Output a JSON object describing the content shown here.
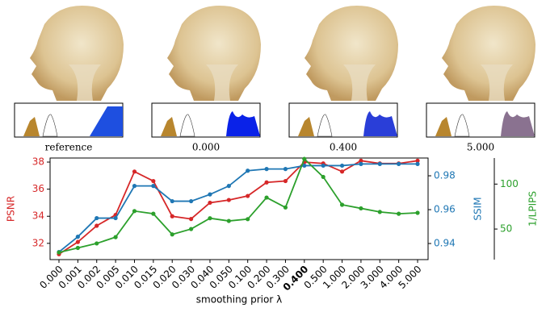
{
  "panels": [
    {
      "label": "reference"
    },
    {
      "label": "0.000"
    },
    {
      "label": "0.400"
    },
    {
      "label": "5.000"
    }
  ],
  "chart_data": {
    "type": "line",
    "x_label": "smoothing prior λ",
    "categories": [
      "0.000",
      "0.001",
      "0.002",
      "0.005",
      "0.010",
      "0.015",
      "0.020",
      "0.030",
      "0.040",
      "0.050",
      "0.100",
      "0.200",
      "0.300",
      "0.400",
      "0.500",
      "1.000",
      "2.000",
      "3.000",
      "4.000",
      "5.000"
    ],
    "bold_category_index": 13,
    "y_label": "PSNR",
    "y2_label": "SSIM",
    "y3_label": "1/LPIPS",
    "ylim": [
      30.8,
      38.3
    ],
    "yticks": [
      32,
      34,
      36,
      38
    ],
    "y2lim": [
      0.9305,
      0.9905
    ],
    "y2ticks": [
      0.94,
      0.96,
      0.98
    ],
    "y3lim": [
      16,
      129
    ],
    "y3ticks": [
      50,
      100
    ],
    "series": [
      {
        "name": "PSNR",
        "color": "#d62728",
        "axis": "y",
        "values": [
          31.2,
          32.1,
          33.3,
          34.1,
          37.3,
          36.6,
          34.0,
          33.8,
          35.0,
          35.2,
          35.5,
          36.5,
          36.6,
          38.0,
          37.9,
          37.3,
          38.1,
          37.9,
          37.9,
          38.1
        ]
      },
      {
        "name": "SSIM",
        "color": "#1f77b4",
        "axis": "y2",
        "values": [
          0.935,
          0.944,
          0.955,
          0.955,
          0.974,
          0.974,
          0.965,
          0.965,
          0.969,
          0.974,
          0.983,
          0.984,
          0.984,
          0.986,
          0.986,
          0.986,
          0.987,
          0.987,
          0.987,
          0.987
        ]
      },
      {
        "name": "1/LPIPS",
        "color": "#2ca02c",
        "axis": "y3",
        "values": [
          24,
          29,
          34,
          41,
          70,
          67,
          44,
          50,
          62,
          59,
          61,
          85,
          74,
          128,
          108,
          77,
          73,
          69,
          67,
          68
        ]
      }
    ]
  }
}
